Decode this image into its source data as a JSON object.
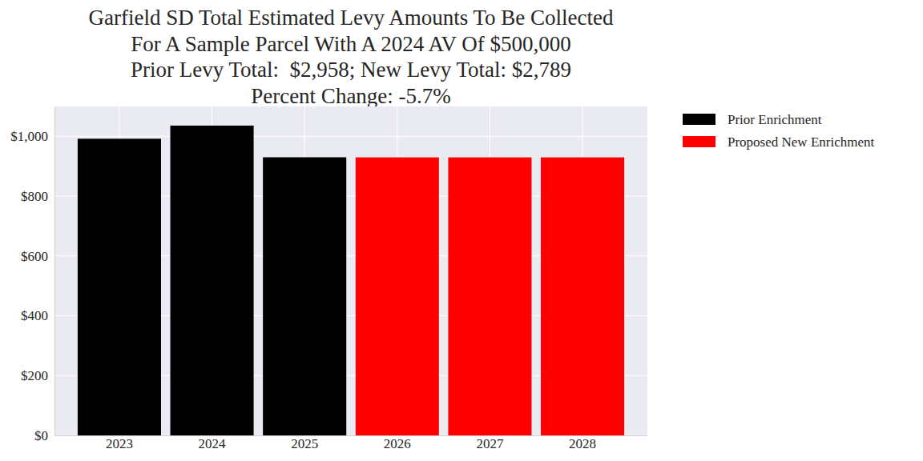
{
  "chart_data": {
    "type": "bar",
    "title": [
      "Garfield SD Total Estimated Levy Amounts To Be Collected",
      "For A Sample Parcel With A 2024 AV Of $500,000",
      "Prior Levy Total:  $2,958; New Levy Total: $2,789",
      "Percent Change: -5.7%"
    ],
    "categories": [
      "2023",
      "2024",
      "2025",
      "2026",
      "2027",
      "2028"
    ],
    "series": [
      {
        "name": "Prior Enrichment",
        "color": "#000000",
        "values": [
          992,
          1036,
          930,
          null,
          null,
          null
        ]
      },
      {
        "name": "Proposed New Enrichment",
        "color": "#ff0000",
        "values": [
          null,
          null,
          null,
          929.67,
          929.67,
          929.67
        ]
      }
    ],
    "ylim": [
      0,
      1100
    ],
    "yticks": [
      {
        "value": 0,
        "label": "$0"
      },
      {
        "value": 200,
        "label": "$200"
      },
      {
        "value": 400,
        "label": "$400"
      },
      {
        "value": 600,
        "label": "$600"
      },
      {
        "value": 800,
        "label": "$800"
      },
      {
        "value": 1000,
        "label": "$1,000"
      }
    ],
    "grid": true,
    "legend": "right"
  }
}
